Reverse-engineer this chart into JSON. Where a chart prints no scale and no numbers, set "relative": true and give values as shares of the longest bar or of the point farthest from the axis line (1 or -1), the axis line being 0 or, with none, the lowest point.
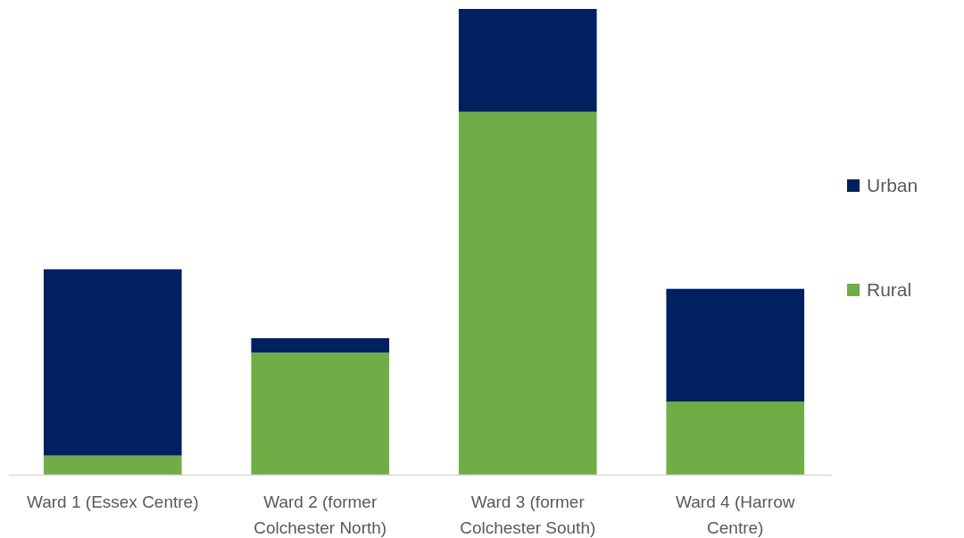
{
  "chart_data": {
    "type": "bar",
    "relative": true,
    "stacked": true,
    "legend": "right",
    "categories": [
      "Ward 1 (Essex Centre)",
      "Ward 2 (former Colchester North)",
      "Ward 3 (former Colchester South)",
      "Ward 4 (Harrow Centre)"
    ],
    "series": [
      {
        "name": "Rural",
        "color": "#70ad47",
        "values": [
          0.041,
          0.262,
          0.779,
          0.157
        ]
      },
      {
        "name": "Urban",
        "color": "#002060",
        "values": [
          0.4,
          0.031,
          0.221,
          0.242
        ]
      }
    ]
  }
}
